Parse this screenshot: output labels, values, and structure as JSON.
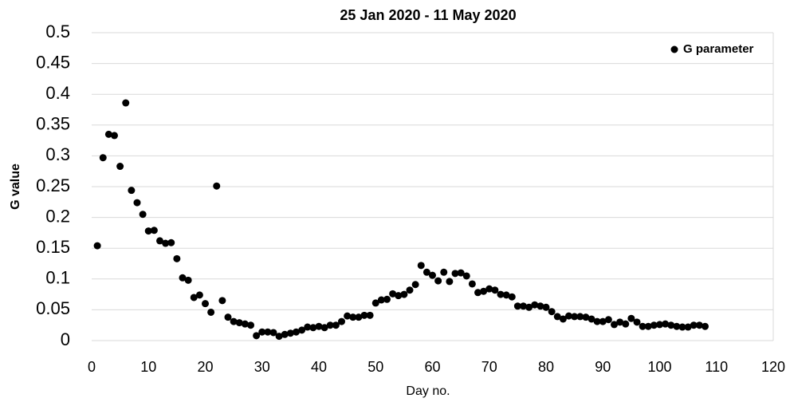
{
  "chart_data": {
    "type": "scatter",
    "title": "25 Jan 2020 - 11 May 2020",
    "x_label": "Day no.",
    "y_label": "G value",
    "xlim": [
      0,
      120
    ],
    "xticks": [
      0,
      10,
      20,
      30,
      40,
      50,
      60,
      70,
      80,
      90,
      100,
      110,
      120
    ],
    "ylim": [
      0,
      0.5
    ],
    "yticks": [
      0,
      0.05,
      0.1,
      0.15,
      0.2,
      0.25,
      0.3,
      0.35,
      0.4,
      0.45,
      0.5
    ],
    "grid": true,
    "legend": "top-right",
    "series": [
      {
        "name": "G parameter",
        "color": "#000000",
        "x": [
          1,
          2,
          3,
          4,
          5,
          6,
          7,
          8,
          9,
          10,
          11,
          12,
          13,
          14,
          15,
          16,
          17,
          18,
          19,
          20,
          21,
          22,
          23,
          24,
          25,
          26,
          27,
          28,
          29,
          30,
          31,
          32,
          33,
          34,
          35,
          36,
          37,
          38,
          39,
          40,
          41,
          42,
          43,
          44,
          45,
          46,
          47,
          48,
          49,
          50,
          51,
          52,
          53,
          54,
          55,
          56,
          57,
          58,
          59,
          60,
          61,
          62,
          63,
          64,
          65,
          66,
          67,
          68,
          69,
          70,
          71,
          72,
          73,
          74,
          75,
          76,
          77,
          78,
          79,
          80,
          81,
          82,
          83,
          84,
          85,
          86,
          87,
          88,
          89,
          90,
          91,
          92,
          93,
          94,
          95,
          96,
          97,
          98,
          99,
          100,
          101,
          102,
          103,
          104,
          105,
          106,
          107,
          108
        ],
        "values": [
          0.154,
          0.297,
          0.335,
          0.333,
          0.283,
          0.386,
          0.244,
          0.224,
          0.205,
          0.178,
          0.179,
          0.162,
          0.158,
          0.159,
          0.133,
          0.102,
          0.098,
          0.07,
          0.074,
          0.06,
          0.046,
          0.251,
          0.065,
          0.038,
          0.031,
          0.029,
          0.027,
          0.025,
          0.008,
          0.014,
          0.014,
          0.013,
          0.007,
          0.01,
          0.012,
          0.014,
          0.017,
          0.022,
          0.021,
          0.023,
          0.021,
          0.025,
          0.025,
          0.031,
          0.04,
          0.038,
          0.038,
          0.041,
          0.041,
          0.061,
          0.066,
          0.067,
          0.076,
          0.073,
          0.075,
          0.082,
          0.091,
          0.122,
          0.111,
          0.106,
          0.097,
          0.111,
          0.096,
          0.109,
          0.11,
          0.105,
          0.092,
          0.078,
          0.08,
          0.084,
          0.082,
          0.075,
          0.074,
          0.071,
          0.056,
          0.056,
          0.054,
          0.058,
          0.056,
          0.054,
          0.047,
          0.039,
          0.035,
          0.04,
          0.039,
          0.039,
          0.038,
          0.035,
          0.031,
          0.031,
          0.034,
          0.026,
          0.03,
          0.027,
          0.036,
          0.03,
          0.023,
          0.023,
          0.025,
          0.026,
          0.027,
          0.025,
          0.023,
          0.022,
          0.022,
          0.025,
          0.025,
          0.023
        ]
      }
    ]
  }
}
